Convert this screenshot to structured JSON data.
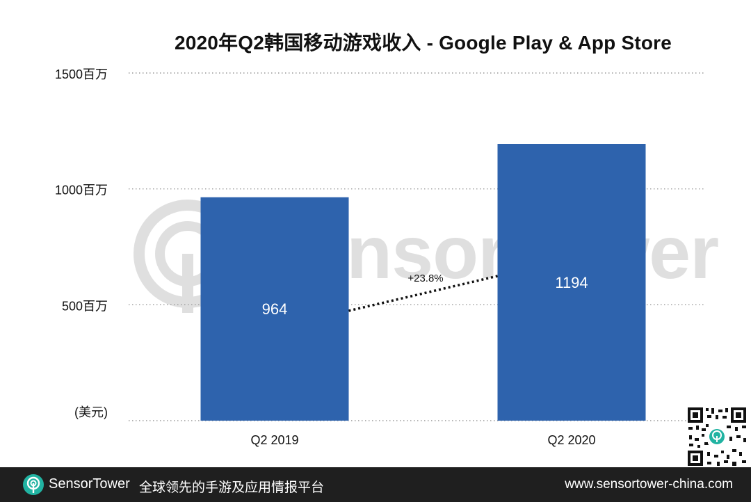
{
  "chart_data": {
    "type": "bar",
    "title": "2020年Q2韩国移动游戏收入 - Google Play & App Store",
    "unit_label": "(美元)",
    "categories": [
      "Q2  2019",
      "Q2 2020"
    ],
    "values": [
      964,
      1194
    ],
    "value_labels": [
      "964",
      "1194"
    ],
    "ylim": [
      0,
      1500
    ],
    "yticks": [
      {
        "value": 500,
        "label": "500百万"
      },
      {
        "value": 1000,
        "label": "1000百万"
      },
      {
        "value": 1500,
        "label": "1500百万"
      }
    ],
    "grid": true,
    "growth_annotation": "+23.8%",
    "bar_color": "#2e63ad"
  },
  "watermark": {
    "text": "SensorTower"
  },
  "footer": {
    "brand_sensor": "Sensor",
    "brand_tower": "Tower",
    "slogan": "全球领先的手游及应用情报平台",
    "url": "www.sensortower-china.com",
    "background": "#1f1f1f",
    "accent": "#21b3a2"
  }
}
